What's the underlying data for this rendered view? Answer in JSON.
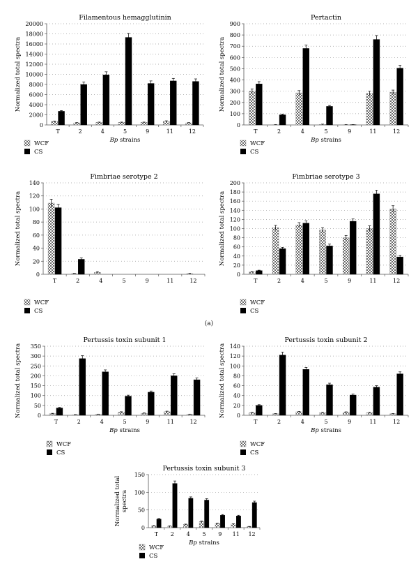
{
  "figure": {
    "panel_label": "(a)",
    "legend": {
      "wcf": "WCF",
      "cs": "CS"
    },
    "colors": {
      "wcf_fill": "#bdbdbd",
      "cs_fill": "#000000",
      "grid": "#9a9a9a",
      "axis": "#555555"
    }
  },
  "chart_data": [
    {
      "type": "bar",
      "title": "Filamentous hemagglutinin",
      "xlabel_italic": "Bp",
      "xlabel_rest": " strains",
      "ylabel_lines": [
        "Normalized total spectra"
      ],
      "categories": [
        "T",
        "2",
        "4",
        "5",
        "9",
        "11",
        "12"
      ],
      "ylim": [
        0,
        20000
      ],
      "yticks": [
        0,
        2000,
        4000,
        6000,
        8000,
        10000,
        12000,
        14000,
        16000,
        18000,
        20000
      ],
      "series": [
        {
          "name": "WCF",
          "values": [
            700,
            400,
            500,
            500,
            500,
            700,
            400
          ],
          "errors": [
            80,
            60,
            60,
            60,
            60,
            120,
            60
          ]
        },
        {
          "name": "CS",
          "values": [
            2700,
            8000,
            9900,
            17300,
            8200,
            8700,
            8600
          ],
          "errors": [
            150,
            500,
            600,
            800,
            500,
            500,
            500
          ]
        }
      ]
    },
    {
      "type": "bar",
      "title": "Pertactin",
      "xlabel_italic": "Bp",
      "xlabel_rest": " strains",
      "ylabel_lines": [
        "Normalized total spectra"
      ],
      "categories": [
        "T",
        "2",
        "4",
        "5",
        "9",
        "11",
        "12"
      ],
      "ylim": [
        0,
        900
      ],
      "yticks": [
        0,
        100,
        200,
        300,
        400,
        500,
        600,
        700,
        800,
        900
      ],
      "series": [
        {
          "name": "WCF",
          "values": [
            300,
            2,
            285,
            5,
            2,
            280,
            290
          ],
          "errors": [
            20,
            1,
            20,
            2,
            1,
            20,
            20
          ]
        },
        {
          "name": "CS",
          "values": [
            365,
            90,
            680,
            165,
            2,
            760,
            505
          ],
          "errors": [
            20,
            6,
            30,
            8,
            1,
            35,
            25
          ]
        }
      ]
    },
    {
      "type": "bar",
      "title": "Fimbriae serotype 2",
      "xlabel_italic": "",
      "xlabel_rest": "",
      "ylabel_lines": [
        "Normalized total spectra"
      ],
      "categories": [
        "T",
        "2",
        "4",
        "5",
        "9",
        "11",
        "12"
      ],
      "ylim": [
        0,
        140
      ],
      "yticks": [
        0,
        20,
        40,
        60,
        80,
        100,
        120,
        140
      ],
      "series": [
        {
          "name": "WCF",
          "values": [
            109,
            1,
            3,
            0,
            0,
            0,
            1
          ],
          "errors": [
            6,
            0.5,
            1,
            0,
            0,
            0,
            0.5
          ]
        },
        {
          "name": "CS",
          "values": [
            102,
            23,
            0,
            0,
            0,
            0,
            0
          ],
          "errors": [
            5,
            2,
            0,
            0,
            0,
            0,
            0
          ]
        }
      ]
    },
    {
      "type": "bar",
      "title": "Fimbriae serotype 3",
      "xlabel_italic": "",
      "xlabel_rest": "",
      "ylabel_lines": [
        "Normalized total spectra"
      ],
      "categories": [
        "T",
        "2",
        "4",
        "5",
        "9",
        "11",
        "12"
      ],
      "ylim": [
        0,
        200
      ],
      "yticks": [
        0,
        20,
        40,
        60,
        80,
        100,
        120,
        140,
        160,
        180,
        200
      ],
      "series": [
        {
          "name": "WCF",
          "values": [
            5,
            102,
            108,
            97,
            80,
            100,
            143
          ],
          "errors": [
            1,
            5,
            5,
            5,
            5,
            6,
            7
          ]
        },
        {
          "name": "CS",
          "values": [
            8,
            56,
            112,
            62,
            116,
            176,
            38
          ],
          "errors": [
            1,
            3,
            5,
            4,
            5,
            8,
            3
          ]
        }
      ]
    },
    {
      "type": "bar",
      "title": "Pertussis toxin subunit 1",
      "xlabel_italic": "Bp",
      "xlabel_rest": " strains",
      "ylabel_lines": [
        "Normalized total spectra"
      ],
      "categories": [
        "T",
        "2",
        "4",
        "5",
        "9",
        "11",
        "12"
      ],
      "ylim": [
        0,
        350
      ],
      "yticks": [
        0,
        50,
        100,
        150,
        200,
        250,
        300,
        350
      ],
      "series": [
        {
          "name": "WCF",
          "values": [
            8,
            3,
            5,
            15,
            10,
            18,
            5
          ],
          "errors": [
            2,
            1,
            1,
            3,
            2,
            3,
            1
          ]
        },
        {
          "name": "CS",
          "values": [
            37,
            287,
            220,
            97,
            117,
            200,
            180
          ],
          "errors": [
            3,
            15,
            10,
            5,
            6,
            10,
            9
          ]
        }
      ]
    },
    {
      "type": "bar",
      "title": "Pertussis toxin subunit 2",
      "xlabel_italic": "Bp",
      "xlabel_rest": " strains",
      "ylabel_lines": [
        "Normalized total spectra"
      ],
      "categories": [
        "T",
        "2",
        "4",
        "5",
        "9",
        "11",
        "12"
      ],
      "ylim": [
        0,
        140
      ],
      "yticks": [
        0,
        20,
        40,
        60,
        80,
        100,
        120,
        140
      ],
      "series": [
        {
          "name": "WCF",
          "values": [
            5,
            3,
            7,
            5,
            6,
            5,
            3
          ],
          "errors": [
            1,
            0.5,
            1,
            1,
            1,
            1,
            0.5
          ]
        },
        {
          "name": "CS",
          "values": [
            20,
            122,
            93,
            62,
            41,
            57,
            84
          ],
          "errors": [
            1.5,
            6,
            4,
            3,
            2,
            3,
            4
          ]
        }
      ]
    },
    {
      "type": "bar",
      "title": "Pertussis toxin subunit 3",
      "xlabel_italic": "Bp",
      "xlabel_rest": " strains",
      "ylabel_lines": [
        "Normalized total",
        "spectra"
      ],
      "categories": [
        "T",
        "2",
        "4",
        "5",
        "9",
        "11",
        "12"
      ],
      "ylim": [
        0,
        150
      ],
      "yticks": [
        0,
        50,
        100,
        150
      ],
      "series": [
        {
          "name": "WCF",
          "values": [
            5,
            4,
            9,
            17,
            12,
            10,
            3
          ],
          "errors": [
            1,
            1,
            1,
            2,
            1,
            1,
            0.5
          ]
        },
        {
          "name": "CS",
          "values": [
            24,
            125,
            83,
            78,
            35,
            33,
            71
          ],
          "errors": [
            2,
            7,
            4,
            4,
            2,
            2,
            4
          ]
        }
      ]
    }
  ]
}
